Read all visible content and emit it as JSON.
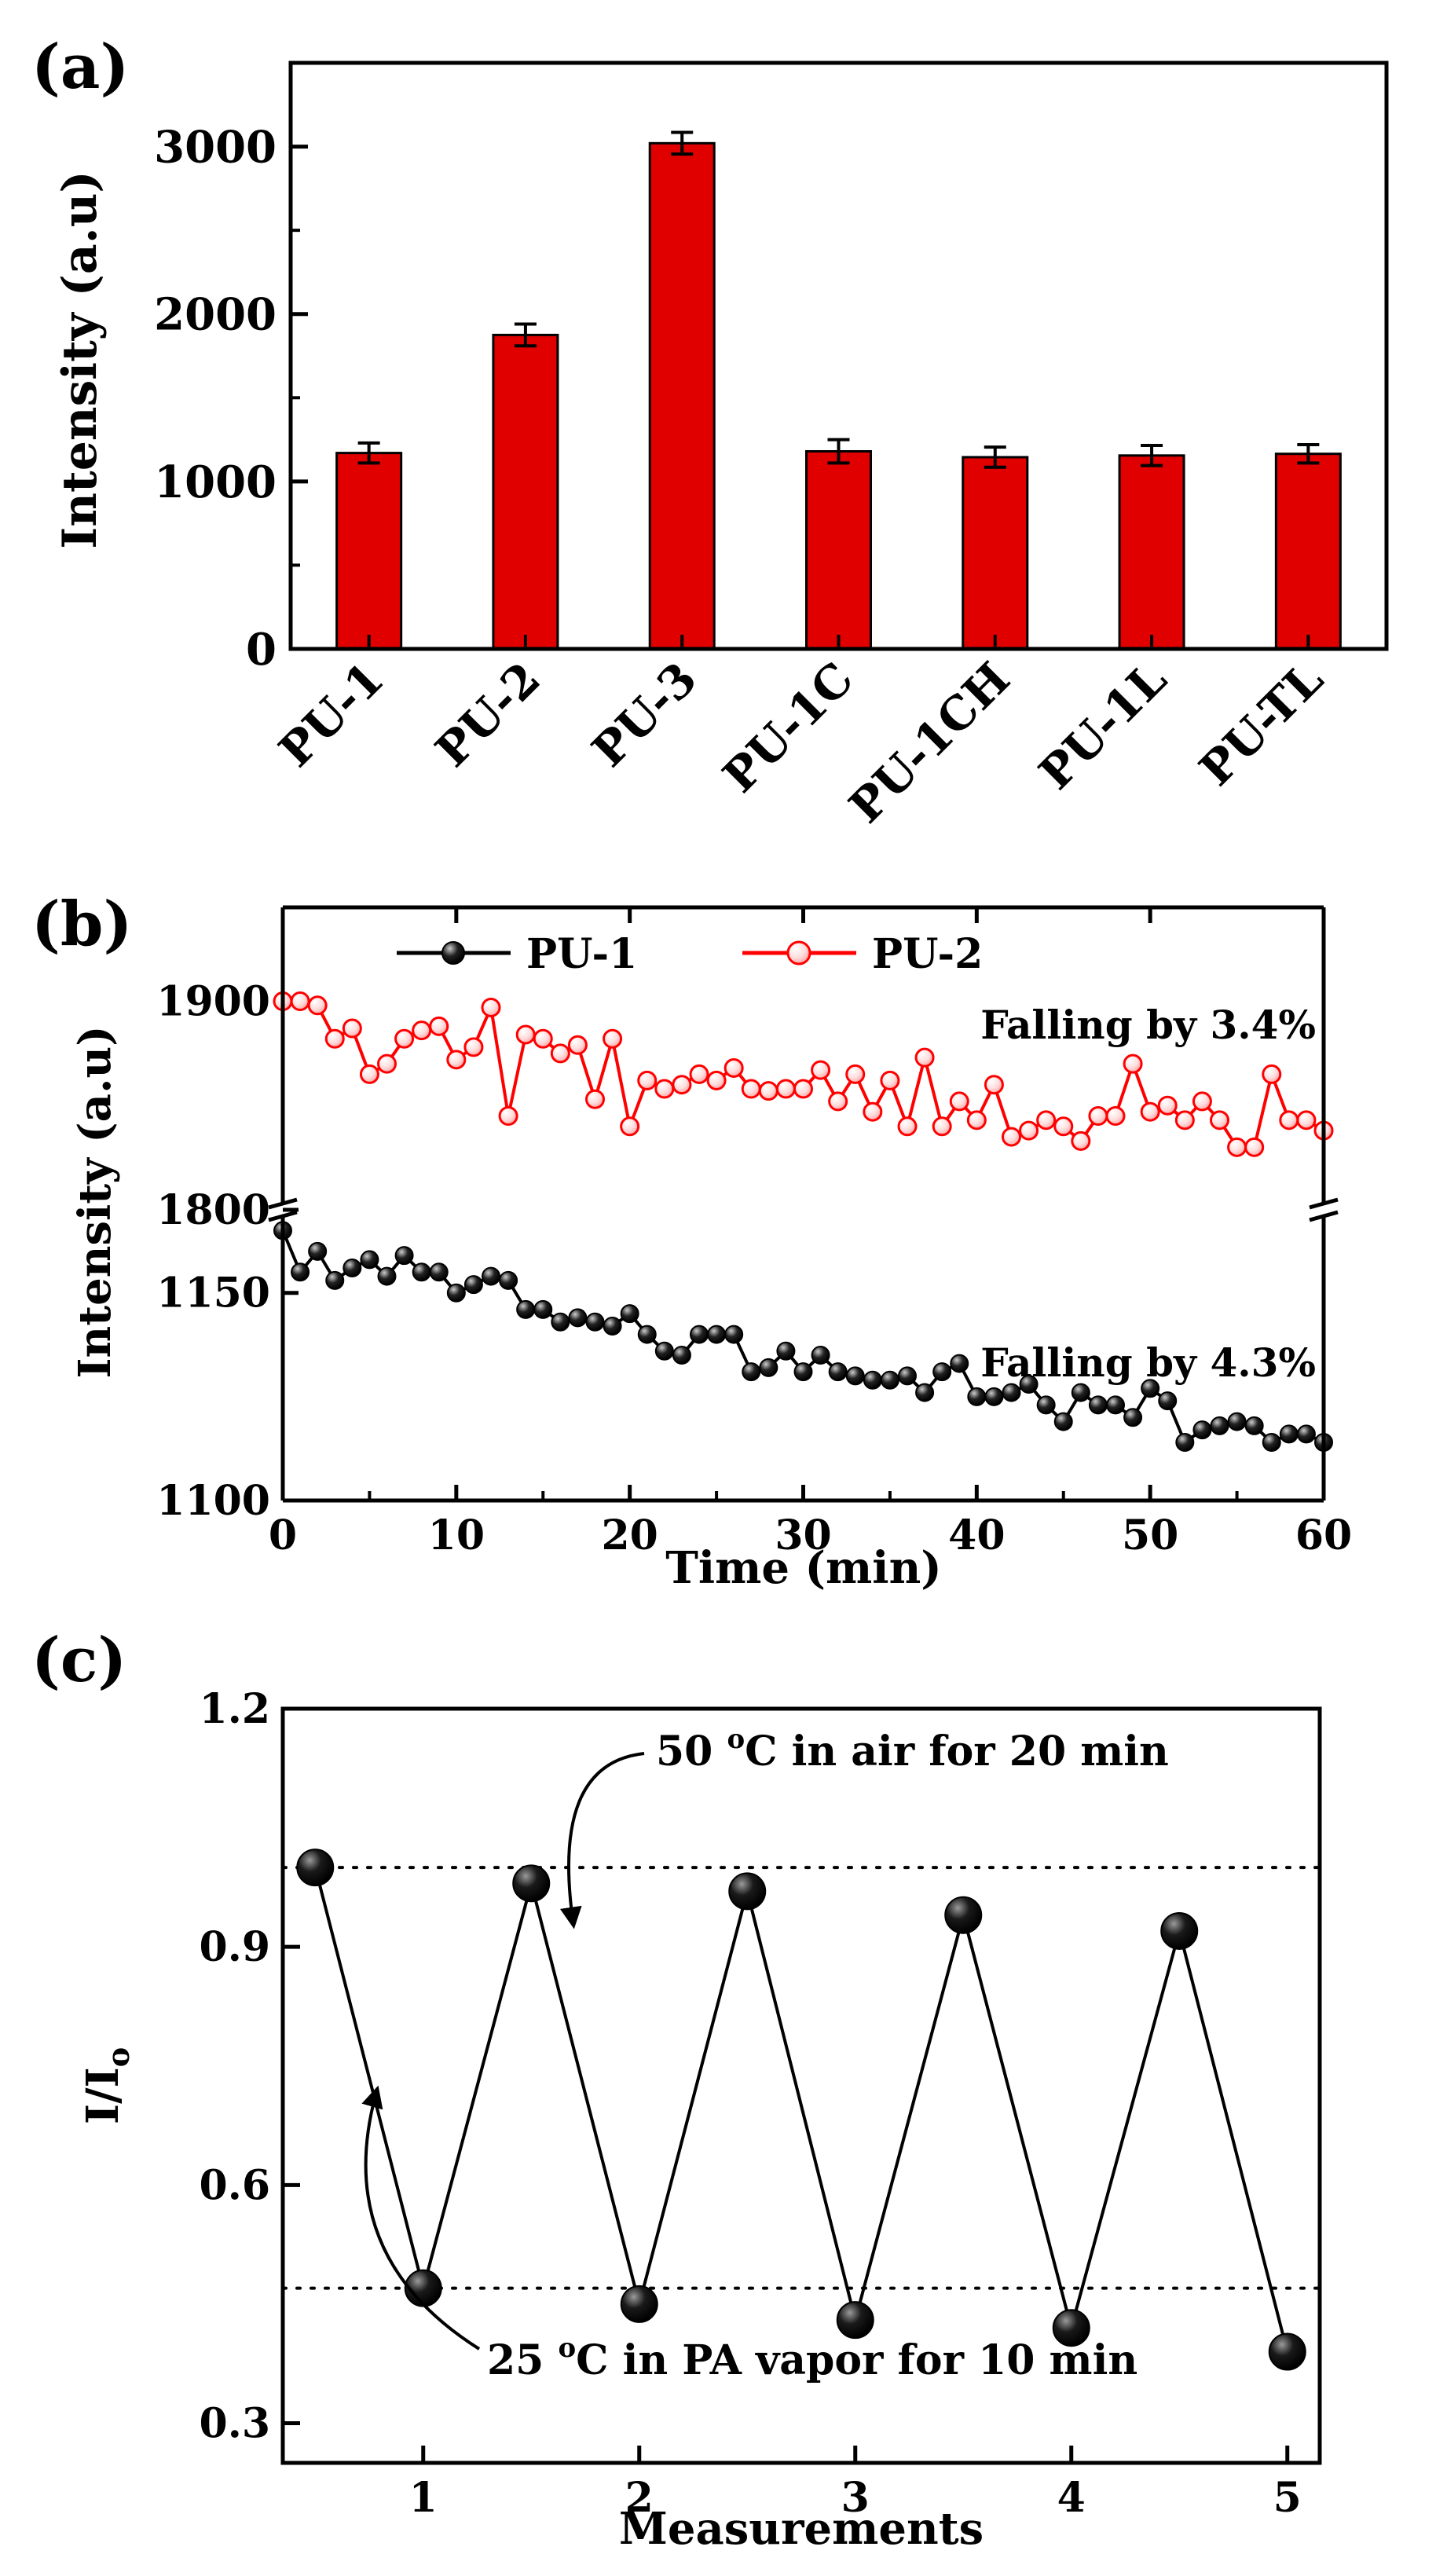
{
  "figure": {
    "panel_a_label": "(a)",
    "panel_b_label": "(b)",
    "panel_c_label": "(c)"
  },
  "chart_data": [
    {
      "panel": "a",
      "type": "bar",
      "ylabel": "Intensity (a.u)",
      "xlabel": "",
      "categories": [
        "PU-1",
        "PU-2",
        "PU-3",
        "PU-1C",
        "PU-1CH",
        "PU-1L",
        "PU-TL"
      ],
      "values": [
        1170,
        1875,
        3020,
        1180,
        1145,
        1155,
        1165
      ],
      "errors": [
        60,
        65,
        65,
        70,
        60,
        60,
        55
      ],
      "yticks": [
        "0",
        "1000",
        "2000",
        "3000"
      ],
      "ylim": [
        0,
        3500
      ],
      "bar_color": "#e00000"
    },
    {
      "panel": "b",
      "type": "line",
      "xlabel": "Time (min)",
      "ylabel": "Intensity (a.u)",
      "xlim": [
        0,
        60
      ],
      "xticks": [
        "0",
        "10",
        "20",
        "30",
        "40",
        "50",
        "60"
      ],
      "broken_axis": true,
      "upper_ylim": [
        1800,
        1945
      ],
      "upper_yticks": [
        "1800",
        "1900"
      ],
      "lower_ylim": [
        1100,
        1170
      ],
      "lower_yticks": [
        "1100",
        "1150"
      ],
      "series": [
        {
          "name": "PU-1",
          "color": "#000000",
          "x": [
            0,
            1,
            2,
            3,
            4,
            5,
            6,
            7,
            8,
            9,
            10,
            11,
            12,
            13,
            14,
            15,
            16,
            17,
            18,
            19,
            20,
            21,
            22,
            23,
            24,
            25,
            26,
            27,
            28,
            29,
            30,
            31,
            32,
            33,
            34,
            35,
            36,
            37,
            38,
            39,
            40,
            41,
            42,
            43,
            44,
            45,
            46,
            47,
            48,
            49,
            50,
            51,
            52,
            53,
            54,
            55,
            56,
            57,
            58,
            59,
            60
          ],
          "values": [
            1165,
            1155,
            1160,
            1153,
            1156,
            1158,
            1154,
            1159,
            1155,
            1155,
            1150,
            1152,
            1154,
            1153,
            1146,
            1146,
            1143,
            1144,
            1143,
            1142,
            1145,
            1140,
            1136,
            1135,
            1140,
            1140,
            1140,
            1131,
            1132,
            1136,
            1131,
            1135,
            1131,
            1130,
            1129,
            1129,
            1130,
            1126,
            1131,
            1133,
            1125,
            1125,
            1126,
            1128,
            1123,
            1119,
            1126,
            1123,
            1123,
            1120,
            1127,
            1124,
            1114,
            1117,
            1118,
            1119,
            1118,
            1114,
            1116,
            1116,
            1114
          ]
        },
        {
          "name": "PU-2",
          "color": "#ff0000",
          "x": [
            0,
            1,
            2,
            3,
            4,
            5,
            6,
            7,
            8,
            9,
            10,
            11,
            12,
            13,
            14,
            15,
            16,
            17,
            18,
            19,
            20,
            21,
            22,
            23,
            24,
            25,
            26,
            27,
            28,
            29,
            30,
            31,
            32,
            33,
            34,
            35,
            36,
            37,
            38,
            39,
            40,
            41,
            42,
            43,
            44,
            45,
            46,
            47,
            48,
            49,
            50,
            51,
            52,
            53,
            54,
            55,
            56,
            57,
            58,
            59,
            60
          ],
          "values": [
            1900,
            1900,
            1898,
            1882,
            1887,
            1865,
            1870,
            1882,
            1886,
            1888,
            1872,
            1878,
            1897,
            1845,
            1884,
            1882,
            1875,
            1879,
            1853,
            1882,
            1840,
            1862,
            1858,
            1860,
            1865,
            1862,
            1868,
            1858,
            1857,
            1858,
            1858,
            1867,
            1852,
            1865,
            1847,
            1862,
            1840,
            1873,
            1840,
            1852,
            1843,
            1860,
            1835,
            1838,
            1843,
            1840,
            1833,
            1845,
            1845,
            1870,
            1847,
            1850,
            1843,
            1852,
            1843,
            1830,
            1830,
            1865,
            1843,
            1843,
            1838
          ]
        }
      ],
      "annotations": [
        "Falling by 3.4%",
        "Falling by 4.3%"
      ]
    },
    {
      "panel": "c",
      "type": "line",
      "xlabel": "Measurements",
      "ylabel": "I/I",
      "ylabel_subscript": "o",
      "ylim": [
        0.25,
        1.2
      ],
      "xlim": [
        0.35,
        5.15
      ],
      "xticks": [
        "1",
        "2",
        "3",
        "4",
        "5"
      ],
      "yticks": [
        "0.3",
        "0.6",
        "0.9",
        "1.2"
      ],
      "x": [
        0.5,
        1,
        1.5,
        2,
        2.5,
        3,
        3.5,
        4,
        4.5,
        5
      ],
      "values": [
        1.0,
        0.47,
        0.98,
        0.45,
        0.97,
        0.43,
        0.94,
        0.42,
        0.92,
        0.39
      ],
      "reference_lines": [
        1.0,
        0.47
      ],
      "annotations": [
        {
          "pre": "50 ",
          "sup": "o",
          "post": "C in air for 20 min"
        },
        {
          "pre": "25 ",
          "sup": "o",
          "post": "C in PA vapor for 10 min"
        }
      ]
    }
  ]
}
